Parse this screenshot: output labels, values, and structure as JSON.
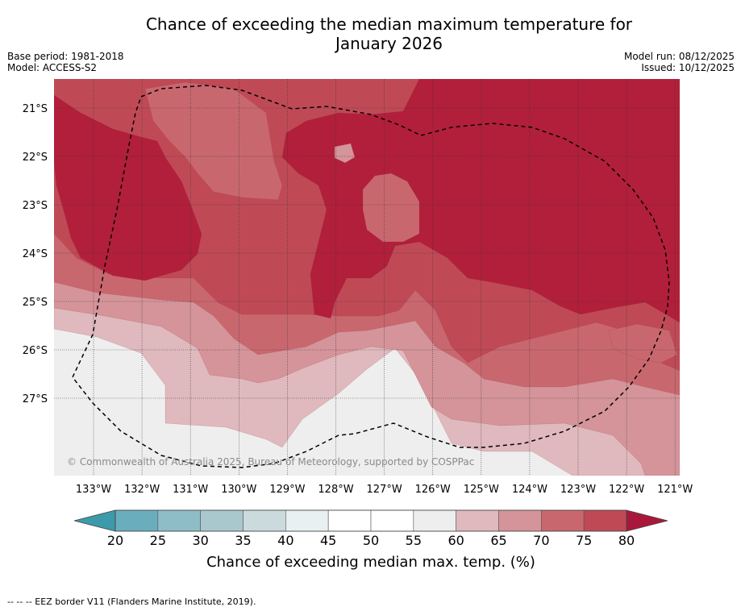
{
  "title_line1": "Chance of exceeding the median maximum temperature for",
  "title_line2": "January 2026",
  "base_period": "Base period: 1981-2018",
  "model": "Model: ACCESS-S2",
  "model_run": "Model run: 08/12/2025",
  "issued": "Issued: 10/12/2025",
  "copyright": "© Commonwealth of Australia 2025, Bureau of Meteorology, supported by COSPPac",
  "lat_labels": [
    "21°S",
    "22°S",
    "23°S",
    "24°S",
    "25°S",
    "26°S",
    "27°S"
  ],
  "lon_labels": [
    "133°W",
    "132°W",
    "131°W",
    "130°W",
    "129°W",
    "128°W",
    "127°W",
    "126°W",
    "125°W",
    "124°W",
    "123°W",
    "122°W",
    "121°W"
  ],
  "colorbar": {
    "ticks": [
      "20",
      "25",
      "30",
      "35",
      "40",
      "45",
      "50",
      "55",
      "60",
      "65",
      "70",
      "75",
      "80"
    ],
    "label": "Chance of exceeding median max. temp. (%)",
    "under_color": "#3d9aaa",
    "over_color": "#a9183a",
    "colors": [
      "#6aaebe",
      "#8ebdc8",
      "#a9c8ce",
      "#cbdbdd",
      "#e9f0f2",
      "#ffffff",
      "#ffffff",
      "#eeeeee",
      "#dfb9bd",
      "#d4949a",
      "#c9676f",
      "#bf4a56"
    ]
  },
  "legend_note": "--  --  -- EEZ border V11 (Flanders Marine Institute, 2019).",
  "colors": {
    "c55": "#eeeeee",
    "c60": "#dfb9bd",
    "c65": "#d4949a",
    "c70": "#c9676f",
    "c75": "#bf4a56",
    "c80": "#b21f3a"
  }
}
